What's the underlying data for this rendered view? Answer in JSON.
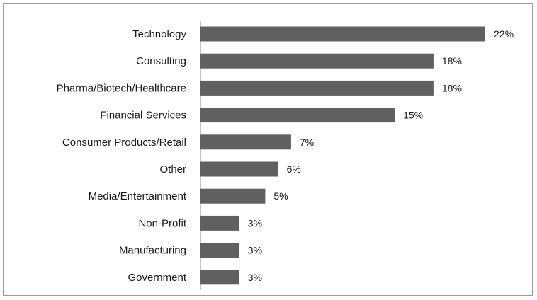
{
  "chart_data": {
    "type": "bar",
    "orientation": "horizontal",
    "title": "",
    "xlabel": "",
    "ylabel": "",
    "categories": [
      "Technology",
      "Consulting",
      "Pharma/Biotech/Healthcare",
      "Financial Services",
      "Consumer Products/Retail",
      "Other",
      "Media/Entertainment",
      "Non-Profit",
      "Manufacturing",
      "Government"
    ],
    "values": [
      22,
      18,
      18,
      15,
      7,
      6,
      5,
      3,
      3,
      3
    ],
    "value_labels": [
      "22%",
      "18%",
      "18%",
      "15%",
      "7%",
      "6%",
      "5%",
      "3%",
      "3%",
      "3%"
    ],
    "unit": "%",
    "xlim": [
      0,
      22
    ],
    "grid": false,
    "legend": "none",
    "bar_color": "#606060",
    "axis_color": "#8c8c8c"
  }
}
